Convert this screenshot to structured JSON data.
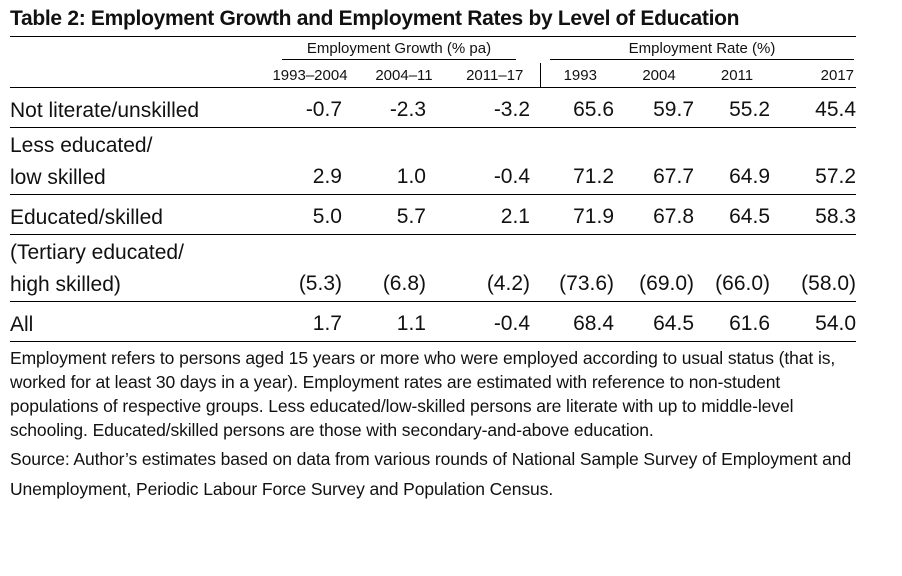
{
  "table": {
    "title": "Table 2: Employment Growth and Employment Rates by Level of Education",
    "group_headers": {
      "growth": "Employment Growth (% pa)",
      "rate": "Employment Rate (%)"
    },
    "columns": [
      "1993–2004",
      "2004–11",
      "2011–17",
      "1993",
      "2004",
      "2011",
      "2017"
    ],
    "rows": [
      {
        "label_lines": [
          "Not literate/unskilled"
        ],
        "values": [
          "-0.7",
          "-2.3",
          "-3.2",
          "65.6",
          "59.7",
          "55.2",
          "45.4"
        ]
      },
      {
        "label_lines": [
          "Less educated/",
          "low skilled"
        ],
        "values": [
          "2.9",
          "1.0",
          "-0.4",
          "71.2",
          "67.7",
          "64.9",
          "57.2"
        ]
      },
      {
        "label_lines": [
          "Educated/skilled"
        ],
        "values": [
          "5.0",
          "5.7",
          "2.1",
          "71.9",
          "67.8",
          "64.5",
          "58.3"
        ]
      },
      {
        "label_lines": [
          "(Tertiary educated/",
          "high skilled)"
        ],
        "values": [
          "(5.3)",
          "(6.8)",
          "(4.2)",
          "(73.6)",
          "(69.0)",
          "(66.0)",
          "(58.0)"
        ]
      },
      {
        "label_lines": [
          "All"
        ],
        "values": [
          "1.7",
          "1.1",
          "-0.4",
          "68.4",
          "64.5",
          "61.6",
          "54.0"
        ]
      }
    ]
  },
  "notes": {
    "text": "Employment refers to persons aged 15 years or more who were employed according to usual status (that is, worked for at least 30 days in a year). Employment rates are estimated with reference to non-student populations of respective groups. Less educated/low-skilled persons are literate with up to middle-level schooling. Educated/skilled persons are those with secondary-and-above education.",
    "source": "Source: Author’s estimates based on data from various rounds of National Sample Survey of Employment and Unemployment, Periodic Labour Force Survey and Population Census."
  }
}
